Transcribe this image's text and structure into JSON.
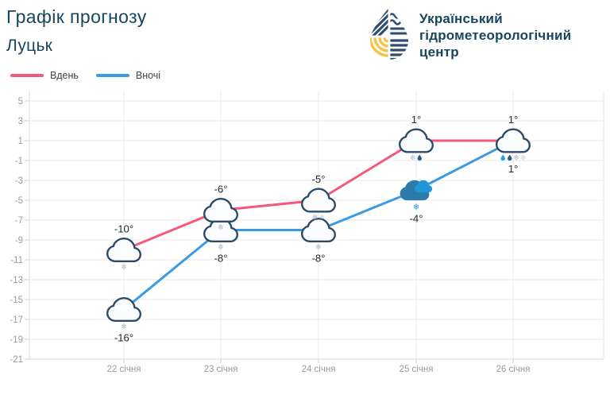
{
  "header": {
    "title": "Графік прогнозу",
    "subtitle": "Луцьк",
    "logo": {
      "lines": [
        "Український",
        "гідрометеорологічний",
        "центр"
      ],
      "navy": "#2e4d6e",
      "yellow": "#f6c445",
      "text_color": "#16455c"
    }
  },
  "legend": {
    "items": [
      {
        "label": "Вдень",
        "color": "#f4597b"
      },
      {
        "label": "Вночі",
        "color": "#3a9be2"
      }
    ]
  },
  "chart_data": {
    "type": "line",
    "title": "Графік прогнозу — Луцьк",
    "categories": [
      "22 січня",
      "23 січня",
      "24 січня",
      "25 січня",
      "26 січня"
    ],
    "ylim": [
      -21,
      5
    ],
    "y_ticks": [
      5,
      3,
      1,
      -1,
      -3,
      -5,
      -7,
      -9,
      -11,
      -13,
      -15,
      -17,
      -19,
      -21
    ],
    "grid": true,
    "legend_position": "top-left",
    "series": [
      {
        "name": "Вдень",
        "color": "#f4597b",
        "values": [
          -10,
          -6,
          -5,
          1,
          1
        ],
        "points": [
          {
            "value": -10,
            "label": "-10°",
            "label_pos": "above",
            "icon": "cloud",
            "precip": [
              "snow"
            ]
          },
          {
            "value": -6,
            "label": "-6°",
            "label_pos": "above",
            "icon": "cloud",
            "precip": [
              "snow"
            ]
          },
          {
            "value": -5,
            "label": "-5°",
            "label_pos": "above",
            "icon": "cloud",
            "precip": [
              "snow",
              "snow-faint"
            ]
          },
          {
            "value": 1,
            "label": "1°",
            "label_pos": "above",
            "icon": "cloud",
            "precip": [
              "snow",
              "rain"
            ]
          },
          {
            "value": 1,
            "label": "1°",
            "label_pos": "above",
            "icon": "cloud",
            "precip": [
              "rain-blue",
              "rain",
              "snow",
              "snow-faint"
            ]
          }
        ]
      },
      {
        "name": "Вночі",
        "color": "#3a9be2",
        "values": [
          -16,
          -8,
          -8,
          -4,
          1
        ],
        "points": [
          {
            "value": -16,
            "label": "-16°",
            "label_pos": "below",
            "icon": "cloud",
            "precip": [
              "snow"
            ]
          },
          {
            "value": -8,
            "label": "-8°",
            "label_pos": "below",
            "icon": "cloud",
            "precip": [
              "snow"
            ]
          },
          {
            "value": -8,
            "label": "-8°",
            "label_pos": "below",
            "icon": "cloud",
            "precip": [
              "snow"
            ]
          },
          {
            "value": -4,
            "label": "-4°",
            "label_pos": "below",
            "icon": "cloud-colored",
            "precip": [
              "snow-blue"
            ]
          },
          {
            "value": 1,
            "label": "1°",
            "label_pos": "below",
            "icon": "none",
            "precip": []
          }
        ]
      }
    ],
    "colors": {
      "grid": "#e8e8e8",
      "axis": "#d9d9d9",
      "tick": "#cfcfcf",
      "tick_label": "#9a9a9a",
      "point_label": "#252b33",
      "cloud_stroke": "#2c4a6a",
      "cloud_fill": "#fbfdff",
      "snow": "#a9b9cd",
      "rain_navy": "#33597f",
      "rain_blue": "#2f9ce4",
      "snow_blue": "#2d9ce2",
      "colored_cloud_main": "#2d7ba8",
      "colored_cloud_light": "#2196d8"
    }
  }
}
